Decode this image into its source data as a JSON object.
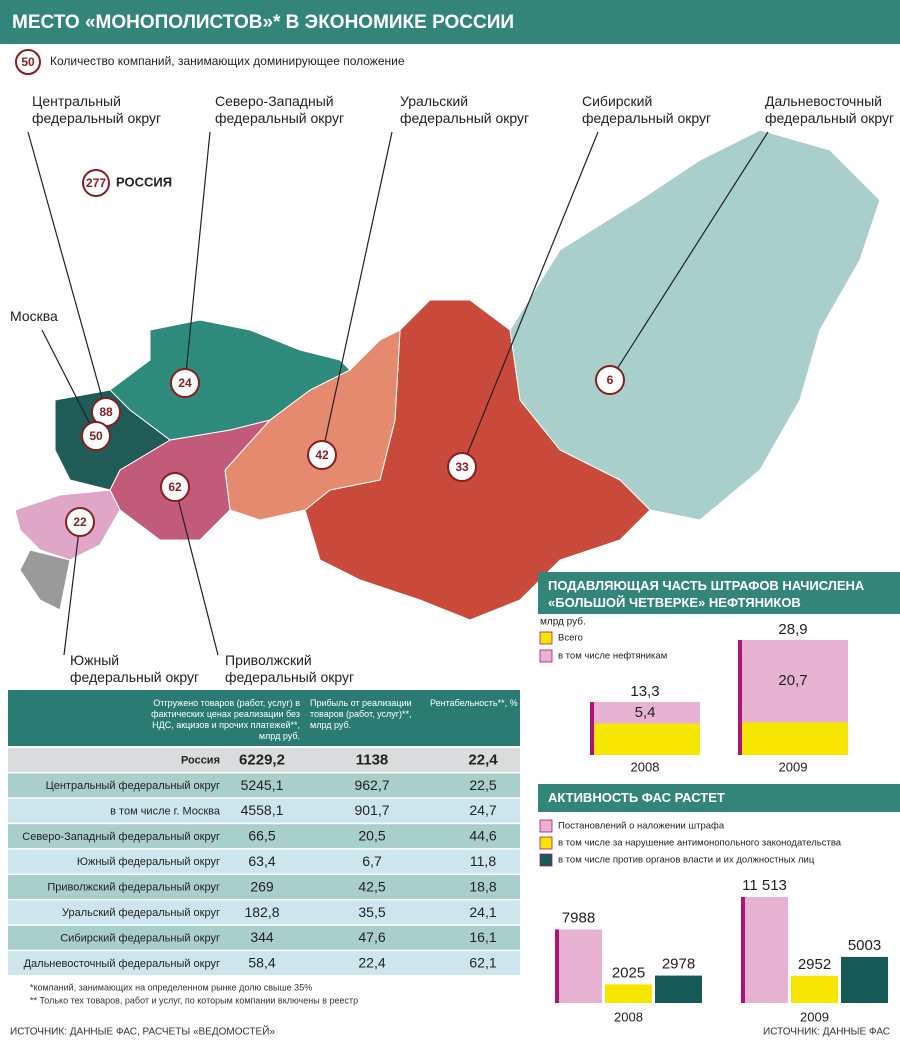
{
  "header": {
    "title": "МЕСТО «МОНОПОЛИСТОВ»* В ЭКОНОМИКЕ РОССИИ"
  },
  "legend": {
    "count": 50,
    "text": "Количество компаний, занимающих доминирующее положение"
  },
  "map": {
    "total": {
      "count": 277,
      "label": "РОССИЯ"
    },
    "regions": [
      {
        "label": "Центральный федеральный округ",
        "count": 88
      },
      {
        "label": "Москва",
        "count": 50
      },
      {
        "label": "Северо-Западный федеральный округ",
        "count": 24
      },
      {
        "label": "Уральский федеральный округ",
        "count": 42
      },
      {
        "label": "Сибирский федеральный округ",
        "count": 33
      },
      {
        "label": "Дальневосточный федеральный округ",
        "count": 6
      },
      {
        "label": "Южный федеральный округ",
        "count": 22
      },
      {
        "label": "Приволжский федеральный округ",
        "count": 62
      }
    ]
  },
  "table": {
    "columns": [
      "Отгружено товаров (работ, услуг) в фактических ценах реализации без НДС, акцизов и прочих платежей**, млрд руб.",
      "Прибыль от реализации товаров (работ, услуг)**, млрд руб.",
      "Рентабельность**, %"
    ],
    "rows": [
      [
        "Россия",
        "6229,2",
        "1138",
        "22,4"
      ],
      [
        "Центральный федеральный округ",
        "5245,1",
        "962,7",
        "22,5"
      ],
      [
        "в том числе г. Москва",
        "4558,1",
        "901,7",
        "24,7"
      ],
      [
        "Северо-Западный федеральный округ",
        "66,5",
        "20,5",
        "44,6"
      ],
      [
        "Южный федеральный округ",
        "63,4",
        "6,7",
        "11,8"
      ],
      [
        "Приволжский федеральный округ",
        "269",
        "42,5",
        "18,8"
      ],
      [
        "Уральский федеральный округ",
        "182,8",
        "35,5",
        "24,1"
      ],
      [
        "Сибирский федеральный округ",
        "344",
        "47,6",
        "16,1"
      ],
      [
        "Дальневосточный федеральный округ",
        "58,4",
        "22,4",
        "62,1"
      ]
    ]
  },
  "footnotes": [
    "*компаний, занимающих на определенном рынке долю свыше 35%",
    "** Только тех товаров, работ и услуг, по которым компании включены в реестр"
  ],
  "sources": [
    "ИСТОЧНИК: ДАННЫЕ ФАС, РАСЧЕТЫ «ВЕДОМОСТЕЙ»",
    "ИСТОЧНИК: ДАННЫЕ ФАС"
  ],
  "chart_data": [
    {
      "type": "bar",
      "part_of_total": true,
      "title": "ПОДАВЛЯЮЩАЯ ЧАСТЬ ШТРАФОВ НАЧИСЛЕНА «БОЛЬШОЙ ЧЕТВЕРКЕ» НЕФТЯНИКОВ",
      "y_label": "млрд руб.",
      "categories": [
        "2008",
        "2009"
      ],
      "series": [
        {
          "name": "Всего",
          "color": "#f7e600",
          "values": [
            13.3,
            28.9
          ],
          "value_labels": [
            "13,3",
            "28,9"
          ]
        },
        {
          "name": "в том числе  нефтяникам",
          "color": "#e8b3d3",
          "values": [
            5.4,
            20.7
          ],
          "value_labels": [
            "5,4",
            "20,7"
          ]
        }
      ]
    },
    {
      "type": "bar",
      "title": "АКТИВНОСТЬ ФАС РАСТЕТ",
      "categories": [
        "2008",
        "2009"
      ],
      "series": [
        {
          "name": "Постановлений о наложении штрафа",
          "color": "#e8b3d3",
          "values": [
            7988,
            11513
          ],
          "value_labels": [
            "7988",
            "11 513"
          ]
        },
        {
          "name": "в том числе за нарушение антимонопольного законодательства",
          "color": "#f7e600",
          "values": [
            2025,
            2952
          ]
        },
        {
          "name": "в том числе против органов власти и их должностных лиц",
          "color": "#155a55",
          "values": [
            2978,
            5003
          ]
        }
      ]
    }
  ]
}
